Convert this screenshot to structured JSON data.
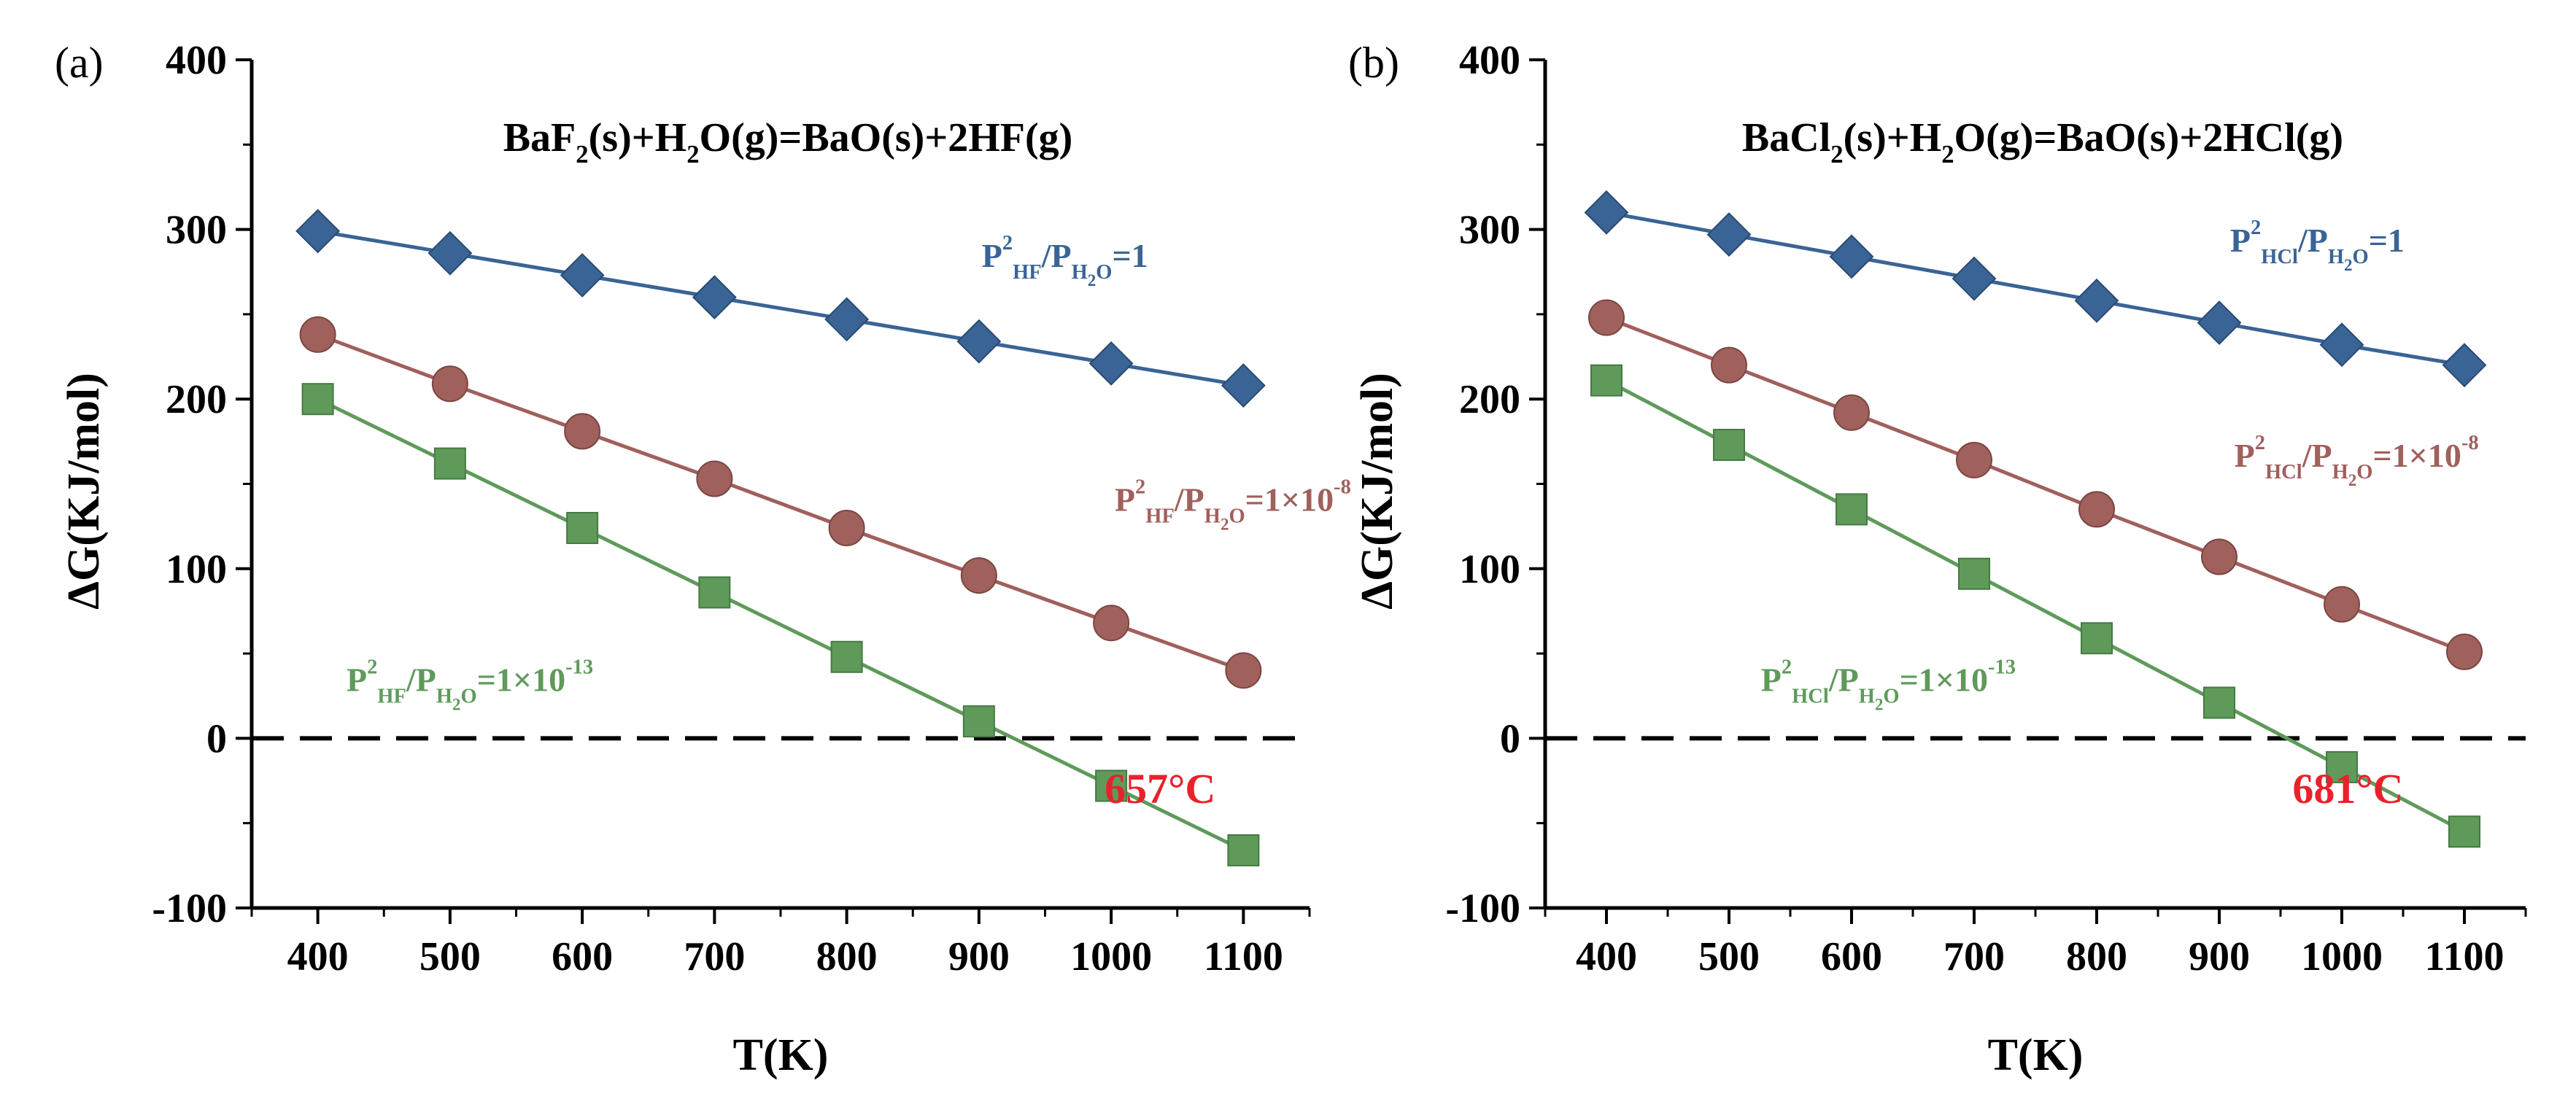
{
  "chart_data": [
    {
      "type": "line",
      "panel_label": "(a)",
      "title": {
        "parts": [
          [
            "BaF",
            ""
          ],
          [
            "2",
            "sub"
          ],
          [
            "(s)+H",
            ""
          ],
          [
            "2",
            "sub"
          ],
          [
            "O(g)=BaO(s)+2HF(g)",
            ""
          ]
        ]
      },
      "xlabel": "T(K)",
      "ylabel": "ΔG(KJ/mol)",
      "xlim": [
        350,
        1150
      ],
      "ylim": [
        -100,
        400
      ],
      "xticks": [
        400,
        500,
        600,
        700,
        800,
        900,
        1000,
        1100
      ],
      "yticks": [
        -100,
        0,
        100,
        200,
        300,
        400
      ],
      "x": [
        400,
        500,
        600,
        700,
        800,
        900,
        1000,
        1100
      ],
      "reference_line": {
        "y": 0,
        "style": "dashed",
        "color": "#000000"
      },
      "series": [
        {
          "name": "P2HF/PH2O=1",
          "color": "#3a6496",
          "marker": "diamond",
          "values": [
            299,
            286,
            273,
            260,
            247,
            234,
            221,
            208
          ],
          "label": {
            "parts": [
              [
                "P",
                ""
              ],
              [
                "2",
                "sup"
              ],
              [
                "HF",
                "sub"
              ],
              [
                "/P",
                ""
              ],
              [
                "H",
                "sub"
              ],
              [
                "2",
                "subsub"
              ],
              [
                "O",
                "sub"
              ],
              [
                "=1",
                ""
              ]
            ],
            "at": [
              965,
              278
            ]
          }
        },
        {
          "name": "P2HF/PH2O=1×10-8",
          "color": "#a0605c",
          "marker": "circle",
          "values": [
            238,
            209,
            181,
            153,
            124,
            96,
            68,
            40
          ],
          "label": {
            "parts": [
              [
                "P",
                ""
              ],
              [
                "2",
                "sup"
              ],
              [
                "HF",
                "sub"
              ],
              [
                "/P",
                ""
              ],
              [
                "H",
                "sub"
              ],
              [
                "2",
                "subsub"
              ],
              [
                "O",
                "sub"
              ],
              [
                "=1×10",
                ""
              ],
              [
                "-8",
                "sup"
              ]
            ],
            "at": [
              1092,
              134
            ]
          }
        },
        {
          "name": "P2HF/PH2O=1×10-13",
          "color": "#5f9a5b",
          "marker": "square",
          "values": [
            200,
            162,
            124,
            86,
            48,
            10,
            -28,
            -66
          ],
          "label": {
            "parts": [
              [
                "P",
                ""
              ],
              [
                "2",
                "sup"
              ],
              [
                "HF",
                "sub"
              ],
              [
                "/P",
                ""
              ],
              [
                "H",
                "sub"
              ],
              [
                "2",
                "subsub"
              ],
              [
                "O",
                "sub"
              ],
              [
                "=1×10",
                ""
              ],
              [
                "-13",
                "sup"
              ]
            ],
            "at": [
              515,
              28
            ]
          }
        }
      ],
      "annotation": {
        "text": "657°C",
        "at": [
          1037,
          -38
        ]
      }
    },
    {
      "type": "line",
      "panel_label": "(b)",
      "title": {
        "parts": [
          [
            "BaCl",
            ""
          ],
          [
            "2",
            "sub"
          ],
          [
            "(s)+H",
            ""
          ],
          [
            "2",
            "sub"
          ],
          [
            "O(g)=BaO(s)+2HCl(g)",
            ""
          ]
        ]
      },
      "xlabel": "T(K)",
      "ylabel": "ΔG(KJ/mol)",
      "xlim": [
        350,
        1150
      ],
      "ylim": [
        -100,
        400
      ],
      "xticks": [
        400,
        500,
        600,
        700,
        800,
        900,
        1000,
        1100
      ],
      "yticks": [
        -100,
        0,
        100,
        200,
        300,
        400
      ],
      "x": [
        400,
        500,
        600,
        700,
        800,
        900,
        1000,
        1100
      ],
      "reference_line": {
        "y": 0,
        "style": "dashed",
        "color": "#000000"
      },
      "series": [
        {
          "name": "P2HCl/PH2O=1",
          "color": "#3a6496",
          "marker": "diamond",
          "values": [
            310,
            297,
            284,
            271,
            258,
            245,
            232,
            220
          ],
          "label": {
            "parts": [
              [
                "P",
                ""
              ],
              [
                "2",
                "sup"
              ],
              [
                "HCl",
                "sub"
              ],
              [
                "/P",
                ""
              ],
              [
                "H",
                "sub"
              ],
              [
                "2",
                "subsub"
              ],
              [
                "O",
                "sub"
              ],
              [
                "=1",
                ""
              ]
            ],
            "at": [
              980,
              287
            ]
          }
        },
        {
          "name": "P2HCl/PH2O=1×10-8",
          "color": "#a0605c",
          "marker": "circle",
          "values": [
            248,
            220,
            192,
            164,
            135,
            107,
            79,
            51
          ],
          "label": {
            "parts": [
              [
                "P",
                ""
              ],
              [
                "2",
                "sup"
              ],
              [
                "HCl",
                "sub"
              ],
              [
                "/P",
                ""
              ],
              [
                "H",
                "sub"
              ],
              [
                "2",
                "subsub"
              ],
              [
                "O",
                "sub"
              ],
              [
                "=1×10",
                ""
              ],
              [
                "-8",
                "sup"
              ]
            ],
            "at": [
              1012,
              160
            ]
          }
        },
        {
          "name": "P2HCl/PH2O=1×10-13",
          "color": "#5f9a5b",
          "marker": "square",
          "values": [
            211,
            173,
            135,
            97,
            59,
            21,
            -17,
            -55
          ],
          "label": {
            "parts": [
              [
                "P",
                ""
              ],
              [
                "2",
                "sup"
              ],
              [
                "HCl",
                "sub"
              ],
              [
                "/P",
                ""
              ],
              [
                "H",
                "sub"
              ],
              [
                "2",
                "subsub"
              ],
              [
                "O",
                "sub"
              ],
              [
                "=1×10",
                ""
              ],
              [
                "-13",
                "sup"
              ]
            ],
            "at": [
              630,
              28
            ]
          }
        }
      ],
      "annotation": {
        "text": "681°C",
        "at": [
          1005,
          -38
        ]
      }
    }
  ]
}
